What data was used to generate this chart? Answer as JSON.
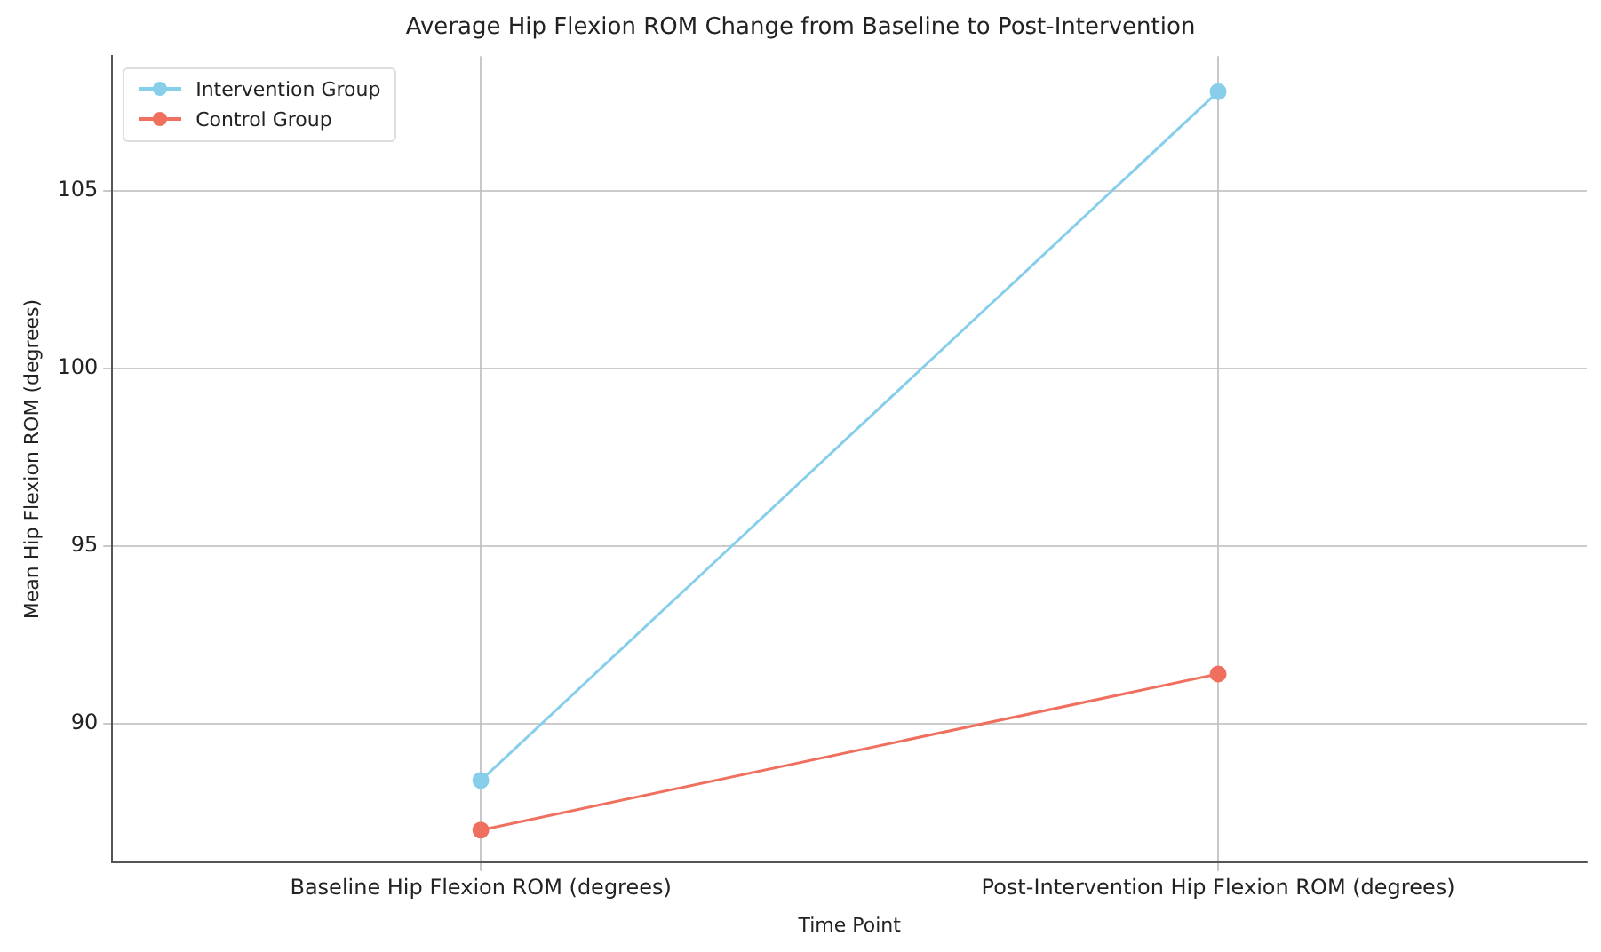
{
  "chart_data": {
    "type": "line",
    "title": "Average Hip Flexion ROM Change from Baseline to Post-Intervention",
    "xlabel": "Time Point",
    "ylabel": "Mean Hip Flexion ROM (degrees)",
    "categories": [
      "Baseline Hip Flexion ROM (degrees)",
      "Post-Intervention Hip Flexion ROM (degrees)"
    ],
    "series": [
      {
        "name": "Intervention Group",
        "color": "#87ceeb",
        "values": [
          88.4,
          107.8
        ]
      },
      {
        "name": "Control Group",
        "color": "#f07060",
        "values": [
          87.0,
          91.4
        ]
      }
    ],
    "ylim": [
      86.1,
      108.8
    ],
    "yticks": [
      90,
      95,
      100,
      105
    ],
    "grid": true,
    "legend": "top left",
    "marker": "circle",
    "line_style": "solid"
  }
}
